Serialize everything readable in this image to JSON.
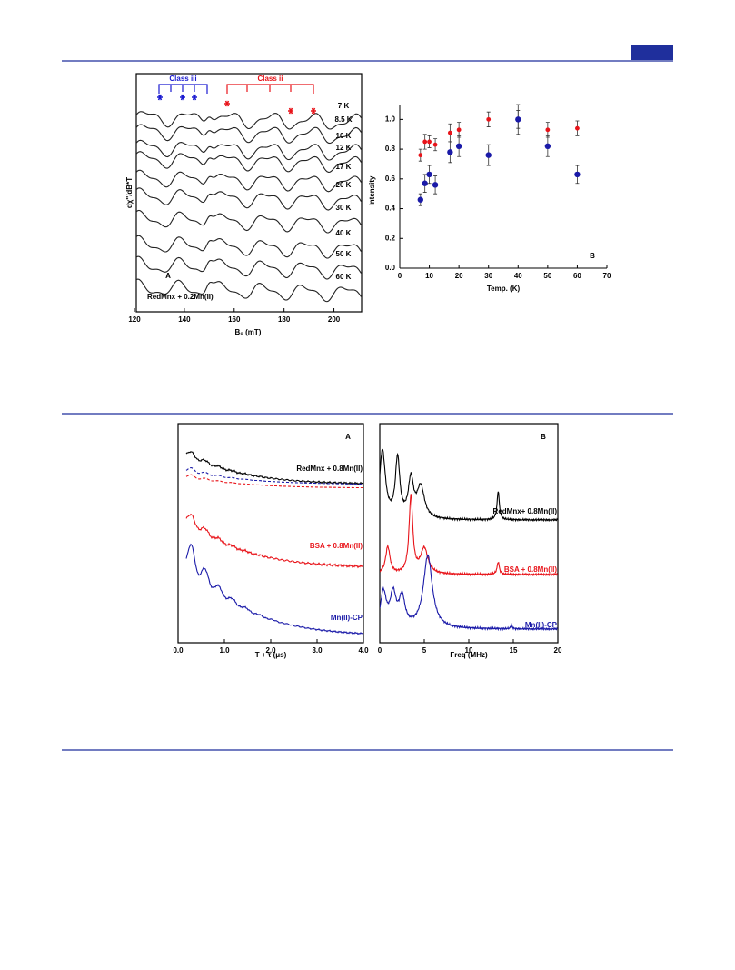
{
  "chart_data": [
    {
      "type": "spectra",
      "panel": "A",
      "xlabel": "B₀ (mT)",
      "ylabel": "dχ''/dB*T",
      "xlim": [
        120,
        210
      ],
      "xticks": [
        120,
        140,
        160,
        180,
        200
      ],
      "class_labels": [
        {
          "text": "Class iii",
          "color": "#1a1ad0"
        },
        {
          "text": "Class ii",
          "color": "#e8141a"
        }
      ],
      "note": "RedMnx + 0.2Mn(II)",
      "trace_labels": [
        "7 K",
        "8.5 K",
        "10 K",
        "12 K",
        "17 K",
        "20 K",
        "30 K",
        "40 K",
        "50 K",
        "60 K"
      ]
    },
    {
      "type": "scatter",
      "panel": "B",
      "xlabel": "Temp. (K)",
      "ylabel": "Intensity",
      "x": [
        7,
        8.5,
        10,
        12,
        17,
        20,
        30,
        40,
        50,
        60
      ],
      "series": [
        {
          "color": "#e8141a",
          "values": [
            0.76,
            0.85,
            0.85,
            0.83,
            0.91,
            0.93,
            1.0,
            1.0,
            0.93,
            0.94
          ],
          "errors": [
            0.04,
            0.05,
            0.04,
            0.04,
            0.06,
            0.05,
            0.05,
            0.06,
            0.05,
            0.05
          ]
        },
        {
          "color": "#1a1aa8",
          "values": [
            0.46,
            0.57,
            0.63,
            0.56,
            0.78,
            0.82,
            0.76,
            1.0,
            0.82,
            0.63
          ],
          "errors": [
            0.04,
            0.06,
            0.06,
            0.06,
            0.07,
            0.07,
            0.07,
            0.1,
            0.07,
            0.06
          ]
        }
      ],
      "xlim": [
        0,
        70
      ],
      "xticks": [
        0,
        10,
        20,
        30,
        40,
        50,
        60,
        70
      ],
      "ylim": [
        0,
        1.1
      ],
      "yticks": [
        {
          "value": 0,
          "label": "0.0"
        },
        {
          "value": 0.2,
          "label": "0.2"
        },
        {
          "value": 0.4,
          "label": "0.4"
        },
        {
          "value": 0.6,
          "label": "0.6"
        },
        {
          "value": 0.8,
          "label": "0.8"
        },
        {
          "value": 1.0,
          "label": "1.0"
        }
      ]
    },
    {
      "type": "spectra",
      "panel": "A",
      "xlabel": "T + τ  (μs)",
      "xlim": [
        0,
        4
      ],
      "xticks": [
        {
          "value": 0,
          "label": "0.0"
        },
        {
          "value": 1,
          "label": "1.0"
        },
        {
          "value": 2,
          "label": "2.0"
        },
        {
          "value": 3,
          "label": "3.0"
        },
        {
          "value": 4,
          "label": "4.0"
        }
      ],
      "trace_labels": [
        {
          "text": "RedMnx + 0.8Mn(II)",
          "color": "#000000"
        },
        {
          "text": "BSA + 0.8Mn(II)",
          "color": "#e8141a"
        },
        {
          "text": "Mn(II)-CP",
          "color": "#1a1aa8"
        }
      ]
    },
    {
      "type": "spectra",
      "panel": "B",
      "xlabel": "Freq (MHz)",
      "xlim": [
        0,
        20
      ],
      "xticks": [
        0,
        5,
        10,
        15,
        20
      ],
      "trace_labels": [
        {
          "text": "RedMnx+ 0.8Mn(II)",
          "color": "#000000"
        },
        {
          "text": "BSA + 0.8Mn(II)",
          "color": "#e8141a"
        },
        {
          "text": "Mn(II)-CP",
          "color": "#1a1aa8"
        }
      ]
    }
  ]
}
